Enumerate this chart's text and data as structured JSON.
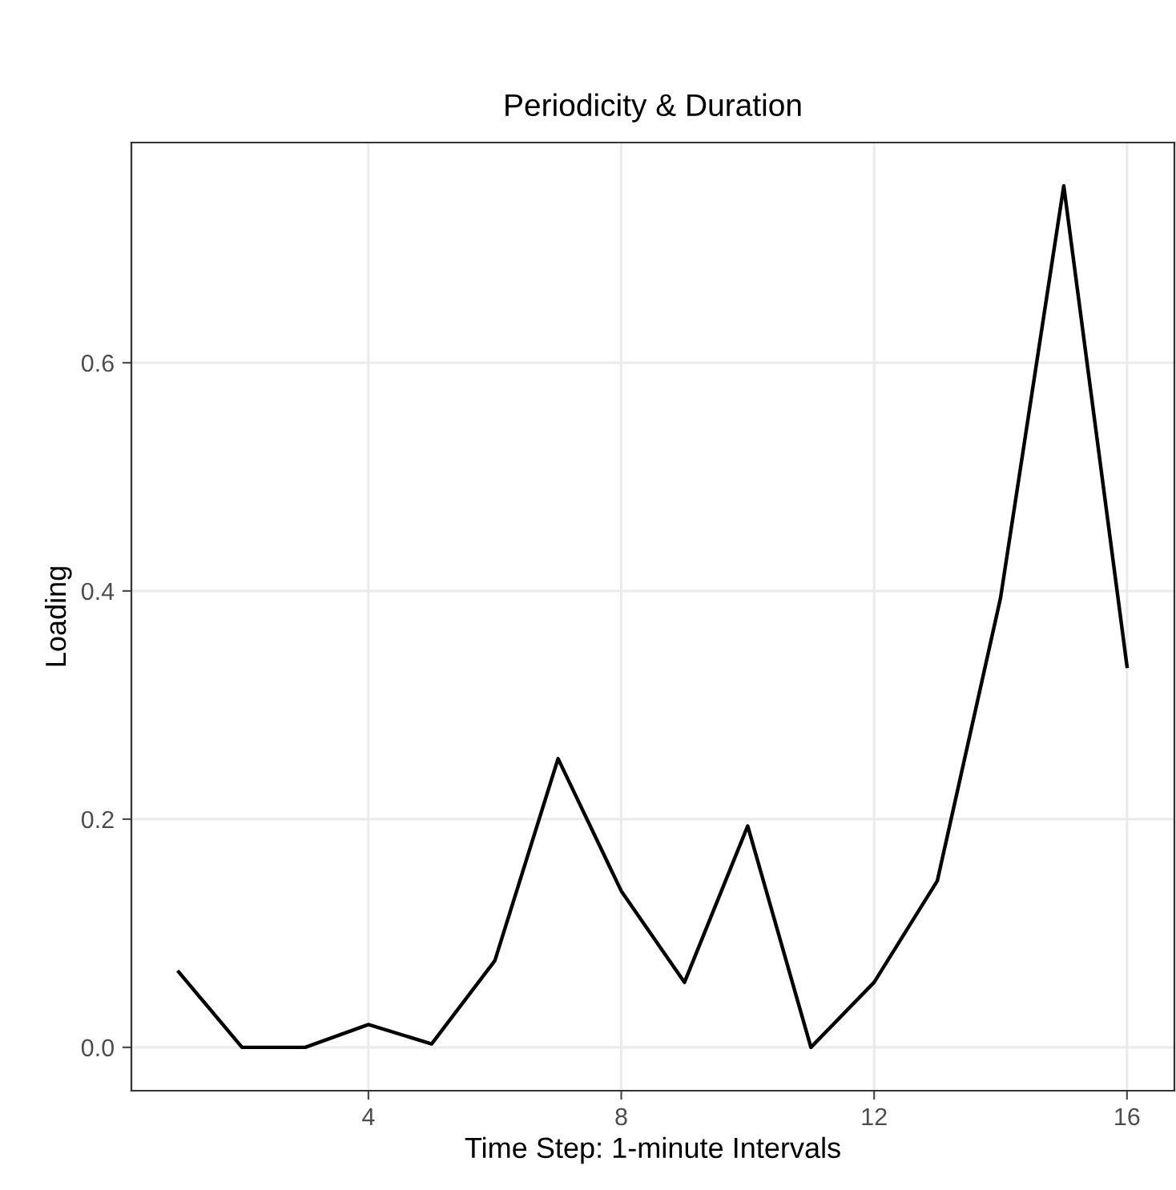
{
  "chart_data": {
    "type": "line",
    "title": "Periodicity & Duration",
    "xlabel": "Time Step: 1-minute Intervals",
    "ylabel": "Loading",
    "x": [
      1,
      2,
      3,
      4,
      5,
      6,
      7,
      8,
      9,
      10,
      11,
      12,
      13,
      14,
      15,
      16
    ],
    "series": [
      {
        "color": "#000000",
        "values": [
          0.066,
          0.0,
          0.0,
          0.02,
          0.003,
          0.076,
          0.253,
          0.137,
          0.057,
          0.194,
          0.0,
          0.057,
          0.146,
          0.394,
          0.755,
          0.334
        ]
      }
    ],
    "xlim": [
      0.25,
      16.75
    ],
    "xticks": [
      4,
      8,
      12,
      16
    ],
    "ylim": [
      -0.038,
      0.793
    ],
    "yticks": [
      {
        "value": 0,
        "label": "0.0"
      },
      0.2,
      0.4,
      0.6
    ],
    "grid": true,
    "line_style": "solid",
    "marker": "none"
  }
}
